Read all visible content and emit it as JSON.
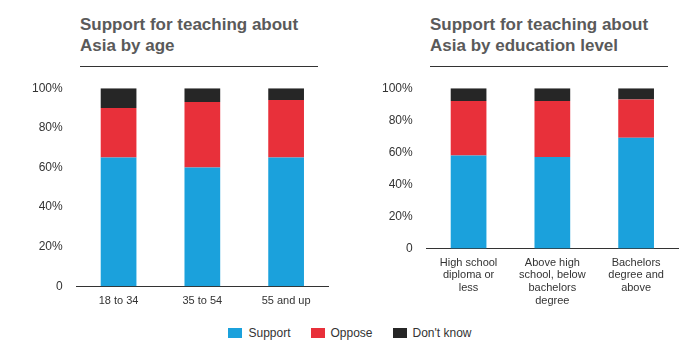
{
  "chart_data": [
    {
      "type": "bar",
      "title": "Support for teaching about Asia by age",
      "stacked": true,
      "grid": false,
      "legend": "bottom",
      "categories": [
        "18 to 34",
        "35 to 54",
        "55 and up"
      ],
      "series": [
        {
          "name": "Support",
          "color": "#1ba1dc",
          "values": [
            65,
            60,
            65
          ]
        },
        {
          "name": "Oppose",
          "color": "#e8303a",
          "values": [
            25,
            33,
            29
          ]
        },
        {
          "name": "Don't know",
          "color": "#262626",
          "values": [
            10,
            7,
            6
          ]
        }
      ],
      "ylim": [
        0,
        100
      ],
      "yticks": [
        0,
        {
          "value": 20,
          "label": "20%"
        },
        {
          "value": 40,
          "label": "40%"
        },
        {
          "value": 60,
          "label": "60%"
        },
        {
          "value": 80,
          "label": "80%"
        },
        {
          "value": 100,
          "label": "100%"
        }
      ]
    },
    {
      "type": "bar",
      "title": "Support for teaching about Asia by education level",
      "stacked": true,
      "grid": false,
      "legend": "bottom",
      "categories": [
        "High school diploma or less",
        "Above high school, below bachelors degree",
        "Bachelors degree and above"
      ],
      "series": [
        {
          "name": "Support",
          "color": "#1ba1dc",
          "values": [
            58,
            57,
            69
          ]
        },
        {
          "name": "Oppose",
          "color": "#e8303a",
          "values": [
            34,
            35,
            24
          ]
        },
        {
          "name": "Don't know",
          "color": "#262626",
          "values": [
            8,
            8,
            7
          ]
        }
      ],
      "ylim": [
        0,
        100
      ],
      "yticks": [
        0,
        {
          "value": 20,
          "label": "20%"
        },
        {
          "value": 40,
          "label": "40%"
        },
        {
          "value": 60,
          "label": "60%"
        },
        {
          "value": 80,
          "label": "80%"
        },
        {
          "value": 100,
          "label": "100%"
        }
      ]
    }
  ]
}
